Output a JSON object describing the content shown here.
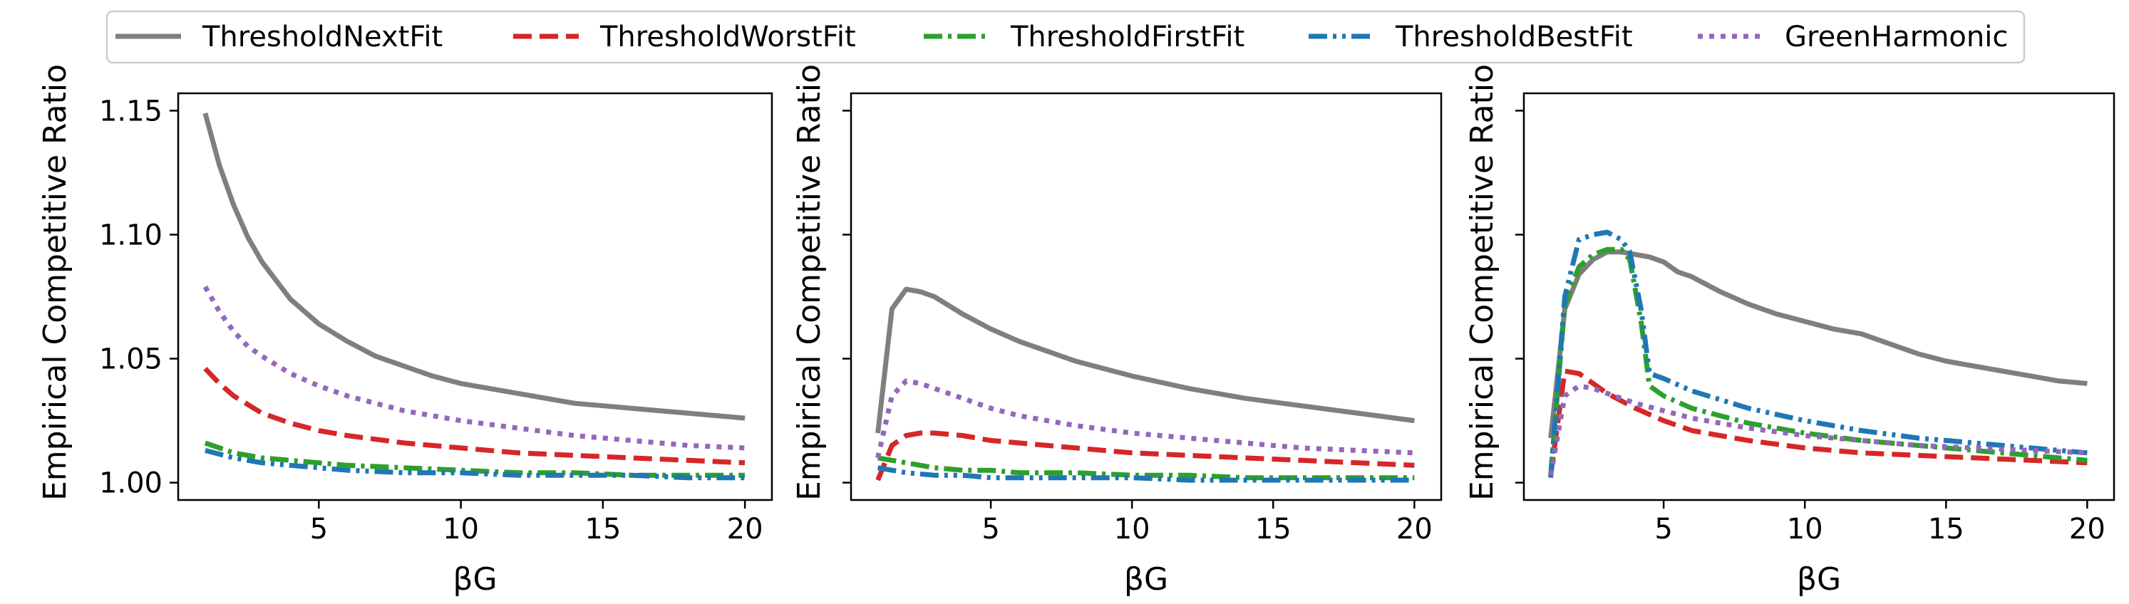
{
  "legend": {
    "placement": "top-center",
    "items": [
      {
        "name": "ThresholdNextFit",
        "color": "#7f7f7f",
        "dash": "solid"
      },
      {
        "name": "ThresholdWorstFit",
        "color": "#d62728",
        "dash": "dashed"
      },
      {
        "name": "ThresholdFirstFit",
        "color": "#2ca02c",
        "dash": "dashdot"
      },
      {
        "name": "ThresholdBestFit",
        "color": "#1f77b4",
        "dash": "dashdotdot"
      },
      {
        "name": "GreenHarmonic",
        "color": "#9467bd",
        "dash": "dotted"
      }
    ]
  },
  "chart_data": [
    {
      "type": "line",
      "xlabel": "βG",
      "ylabel": "Empirical Competitive Ratio",
      "xlim": [
        0.05,
        20.95
      ],
      "ylim": [
        0.993,
        1.157
      ],
      "xticks": [
        5,
        10,
        15,
        20
      ],
      "yticks": [
        1.0,
        1.05,
        1.1,
        1.15
      ],
      "ytick_labels": [
        "1.00",
        "1.05",
        "1.10",
        "1.15"
      ],
      "grid": false,
      "series": [
        {
          "name": "ThresholdNextFit",
          "x": [
            1,
            1.5,
            2,
            2.5,
            3,
            4,
            5,
            6,
            7,
            8,
            9,
            10,
            12,
            14,
            16,
            18,
            20
          ],
          "y": [
            1.149,
            1.128,
            1.112,
            1.099,
            1.089,
            1.074,
            1.064,
            1.057,
            1.051,
            1.047,
            1.043,
            1.04,
            1.036,
            1.032,
            1.03,
            1.028,
            1.026
          ]
        },
        {
          "name": "ThresholdWorstFit",
          "x": [
            1,
            1.5,
            2,
            3,
            4,
            5,
            6,
            8,
            10,
            12,
            14,
            16,
            18,
            20
          ],
          "y": [
            1.046,
            1.04,
            1.035,
            1.028,
            1.024,
            1.021,
            1.019,
            1.016,
            1.014,
            1.012,
            1.011,
            1.01,
            1.009,
            1.008
          ]
        },
        {
          "name": "ThresholdFirstFit",
          "x": [
            1,
            2,
            3,
            4,
            5,
            6,
            8,
            10,
            12,
            14,
            16,
            18,
            20
          ],
          "y": [
            1.016,
            1.012,
            1.01,
            1.009,
            1.008,
            1.007,
            1.006,
            1.005,
            1.004,
            1.004,
            1.003,
            1.003,
            1.003
          ]
        },
        {
          "name": "ThresholdBestFit",
          "x": [
            1,
            2,
            3,
            4,
            5,
            6,
            8,
            10,
            12,
            14,
            16,
            18,
            20
          ],
          "y": [
            1.013,
            1.01,
            1.008,
            1.007,
            1.006,
            1.005,
            1.004,
            1.004,
            1.003,
            1.003,
            1.003,
            1.002,
            1.002
          ]
        },
        {
          "name": "GreenHarmonic",
          "x": [
            1,
            1.5,
            2,
            2.5,
            3,
            4,
            5,
            6,
            8,
            10,
            12,
            14,
            16,
            18,
            20
          ],
          "y": [
            1.079,
            1.069,
            1.061,
            1.055,
            1.051,
            1.044,
            1.039,
            1.035,
            1.029,
            1.025,
            1.022,
            1.019,
            1.017,
            1.015,
            1.014
          ]
        }
      ]
    },
    {
      "type": "line",
      "xlabel": "βG",
      "ylabel": "Empirical Competitive Ratio",
      "xlim": [
        0.05,
        20.95
      ],
      "ylim": [
        0.993,
        1.157
      ],
      "xticks": [
        5,
        10,
        15,
        20
      ],
      "yticks": [
        1.0,
        1.05,
        1.1,
        1.15
      ],
      "ytick_labels": [
        "",
        "",
        "",
        ""
      ],
      "grid": false,
      "series": [
        {
          "name": "ThresholdNextFit",
          "x": [
            1,
            1.5,
            2,
            2.5,
            3,
            4,
            5,
            6,
            7,
            8,
            9,
            10,
            12,
            14,
            16,
            18,
            20
          ],
          "y": [
            1.02,
            1.07,
            1.078,
            1.077,
            1.075,
            1.068,
            1.062,
            1.057,
            1.053,
            1.049,
            1.046,
            1.043,
            1.038,
            1.034,
            1.031,
            1.028,
            1.025
          ]
        },
        {
          "name": "ThresholdWorstFit",
          "x": [
            1,
            1.5,
            2,
            2.5,
            3,
            4,
            5,
            6,
            8,
            10,
            12,
            14,
            16,
            18,
            20
          ],
          "y": [
            1.001,
            1.015,
            1.019,
            1.02,
            1.02,
            1.019,
            1.017,
            1.016,
            1.014,
            1.012,
            1.011,
            1.01,
            1.009,
            1.008,
            1.007
          ]
        },
        {
          "name": "ThresholdFirstFit",
          "x": [
            1,
            2,
            3,
            4,
            5,
            6,
            8,
            10,
            12,
            14,
            16,
            18,
            20
          ],
          "y": [
            1.01,
            1.008,
            1.006,
            1.005,
            1.005,
            1.004,
            1.004,
            1.003,
            1.003,
            1.002,
            1.002,
            1.002,
            1.002
          ]
        },
        {
          "name": "ThresholdBestFit",
          "x": [
            1,
            2,
            3,
            4,
            5,
            6,
            8,
            10,
            12,
            14,
            16,
            18,
            20
          ],
          "y": [
            1.006,
            1.004,
            1.003,
            1.003,
            1.002,
            1.002,
            1.002,
            1.002,
            1.001,
            1.001,
            1.001,
            1.001,
            1.001
          ]
        },
        {
          "name": "GreenHarmonic",
          "x": [
            1,
            1.5,
            2,
            2.5,
            3,
            4,
            5,
            6,
            8,
            10,
            12,
            14,
            16,
            18,
            20
          ],
          "y": [
            1.01,
            1.035,
            1.041,
            1.04,
            1.038,
            1.034,
            1.03,
            1.027,
            1.023,
            1.02,
            1.018,
            1.016,
            1.014,
            1.013,
            1.012
          ]
        }
      ]
    },
    {
      "type": "line",
      "xlabel": "βG",
      "ylabel": "Empirical Competitive Ratio",
      "xlim": [
        0.05,
        20.95
      ],
      "ylim": [
        0.993,
        1.157
      ],
      "xticks": [
        5,
        10,
        15,
        20
      ],
      "yticks": [
        1.0,
        1.05,
        1.1,
        1.15
      ],
      "ytick_labels": [
        "",
        "",
        "",
        ""
      ],
      "grid": false,
      "series": [
        {
          "name": "ThresholdNextFit",
          "x": [
            1,
            1.5,
            2,
            2.5,
            3,
            3.5,
            4,
            4.5,
            5,
            5.5,
            6,
            7,
            8,
            9,
            10,
            11,
            12,
            13,
            14,
            15,
            16,
            17,
            18,
            19,
            20
          ],
          "y": [
            1.018,
            1.07,
            1.084,
            1.09,
            1.093,
            1.093,
            1.092,
            1.091,
            1.089,
            1.085,
            1.083,
            1.077,
            1.072,
            1.068,
            1.065,
            1.062,
            1.06,
            1.056,
            1.052,
            1.049,
            1.047,
            1.045,
            1.043,
            1.041,
            1.04
          ]
        },
        {
          "name": "ThresholdWorstFit",
          "x": [
            1,
            1.5,
            2,
            2.5,
            3,
            4,
            5,
            6,
            7,
            8,
            10,
            12,
            14,
            16,
            18,
            20
          ],
          "y": [
            1.003,
            1.045,
            1.044,
            1.04,
            1.036,
            1.03,
            1.025,
            1.021,
            1.019,
            1.017,
            1.014,
            1.012,
            1.011,
            1.01,
            1.009,
            1.008
          ]
        },
        {
          "name": "ThresholdFirstFit",
          "x": [
            1,
            1.5,
            2,
            2.5,
            3,
            3.5,
            3.8,
            4.2,
            4.5,
            5,
            6,
            8,
            10,
            12,
            14,
            16,
            18,
            20
          ],
          "y": [
            1.003,
            1.072,
            1.087,
            1.092,
            1.094,
            1.094,
            1.09,
            1.065,
            1.039,
            1.035,
            1.03,
            1.024,
            1.02,
            1.017,
            1.015,
            1.013,
            1.011,
            1.009
          ]
        },
        {
          "name": "ThresholdBestFit",
          "x": [
            1,
            1.5,
            2,
            2.5,
            3,
            3.5,
            3.8,
            4.2,
            4.5,
            5,
            6,
            8,
            10,
            12,
            14,
            16,
            18,
            20
          ],
          "y": [
            1.002,
            1.075,
            1.098,
            1.1,
            1.101,
            1.098,
            1.093,
            1.07,
            1.044,
            1.042,
            1.037,
            1.03,
            1.025,
            1.021,
            1.018,
            1.016,
            1.014,
            1.012
          ]
        },
        {
          "name": "GreenHarmonic",
          "x": [
            1,
            1.5,
            2,
            2.5,
            3,
            4,
            5,
            6,
            8,
            10,
            12,
            14,
            16,
            18,
            20
          ],
          "y": [
            1.003,
            1.035,
            1.039,
            1.038,
            1.036,
            1.032,
            1.029,
            1.026,
            1.022,
            1.019,
            1.017,
            1.015,
            1.014,
            1.013,
            1.012
          ]
        }
      ]
    }
  ]
}
